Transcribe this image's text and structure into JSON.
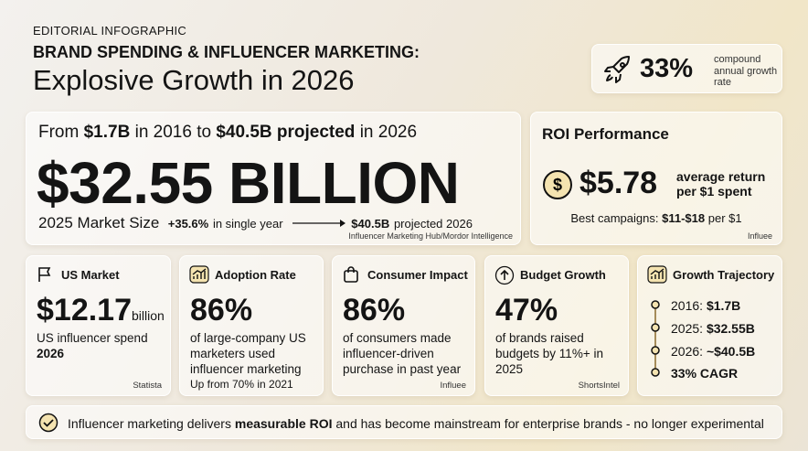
{
  "header": {
    "kicker": "EDITORIAL INFOGRAPHIC",
    "title": "BRAND SPENDING & INFLUENCER MARKETING:",
    "subtitle": "Explosive Growth in 2026"
  },
  "cagr_badge": {
    "value": "33%",
    "label": "compound annual growth rate"
  },
  "market": {
    "lead": [
      "From",
      "$1.7B",
      "in 2016 to",
      "$40.5B projected",
      "in 2026"
    ],
    "headline": "$32.55 BILLION",
    "size_label": "2025 Market Size",
    "growth": "+35.6%",
    "growth_note": "in single year",
    "projected": "$40.5B",
    "projected_note": "projected 2026",
    "source": "Influencer Marketing Hub/Mordor Intelligence"
  },
  "roi": {
    "title": "ROI Performance",
    "value": "$5.78",
    "desc": "average return per $1 spent",
    "best_label": "Best campaigns:",
    "best_value": "$11-$18",
    "best_note": "per $1",
    "source": "Influee"
  },
  "cards": {
    "us_market": {
      "title": "US Market",
      "value": "$12.17",
      "unit": "billion",
      "desc": "US influencer spend",
      "desc_bold": "2026",
      "source": "Statista"
    },
    "adoption": {
      "title": "Adoption Rate",
      "value": "86%",
      "desc": "of large-company US marketers used influencer marketing",
      "note": "Up from 70% in 2021"
    },
    "consumer": {
      "title": "Consumer Impact",
      "value": "86%",
      "desc": "of consumers made influencer-driven purchase in past year",
      "source": "Influee"
    },
    "budget": {
      "title": "Budget Growth",
      "value": "47%",
      "desc": "of brands raised budgets by 11%+ in 2025",
      "source": "ShortsIntel"
    },
    "trajectory": {
      "title": "Growth Trajectory",
      "items": [
        {
          "label": "2016:",
          "value": "$1.7B"
        },
        {
          "label": "2025:",
          "value": "$32.55B"
        },
        {
          "label": "2026:",
          "value": "~$40.5B"
        },
        {
          "label": "33% CAGR"
        }
      ]
    }
  },
  "footer": {
    "text": "Influencer marketing delivers",
    "bold": "measurable ROI",
    "text_end": "and has become mainstream for enterprise brands - no longer experimental"
  }
}
